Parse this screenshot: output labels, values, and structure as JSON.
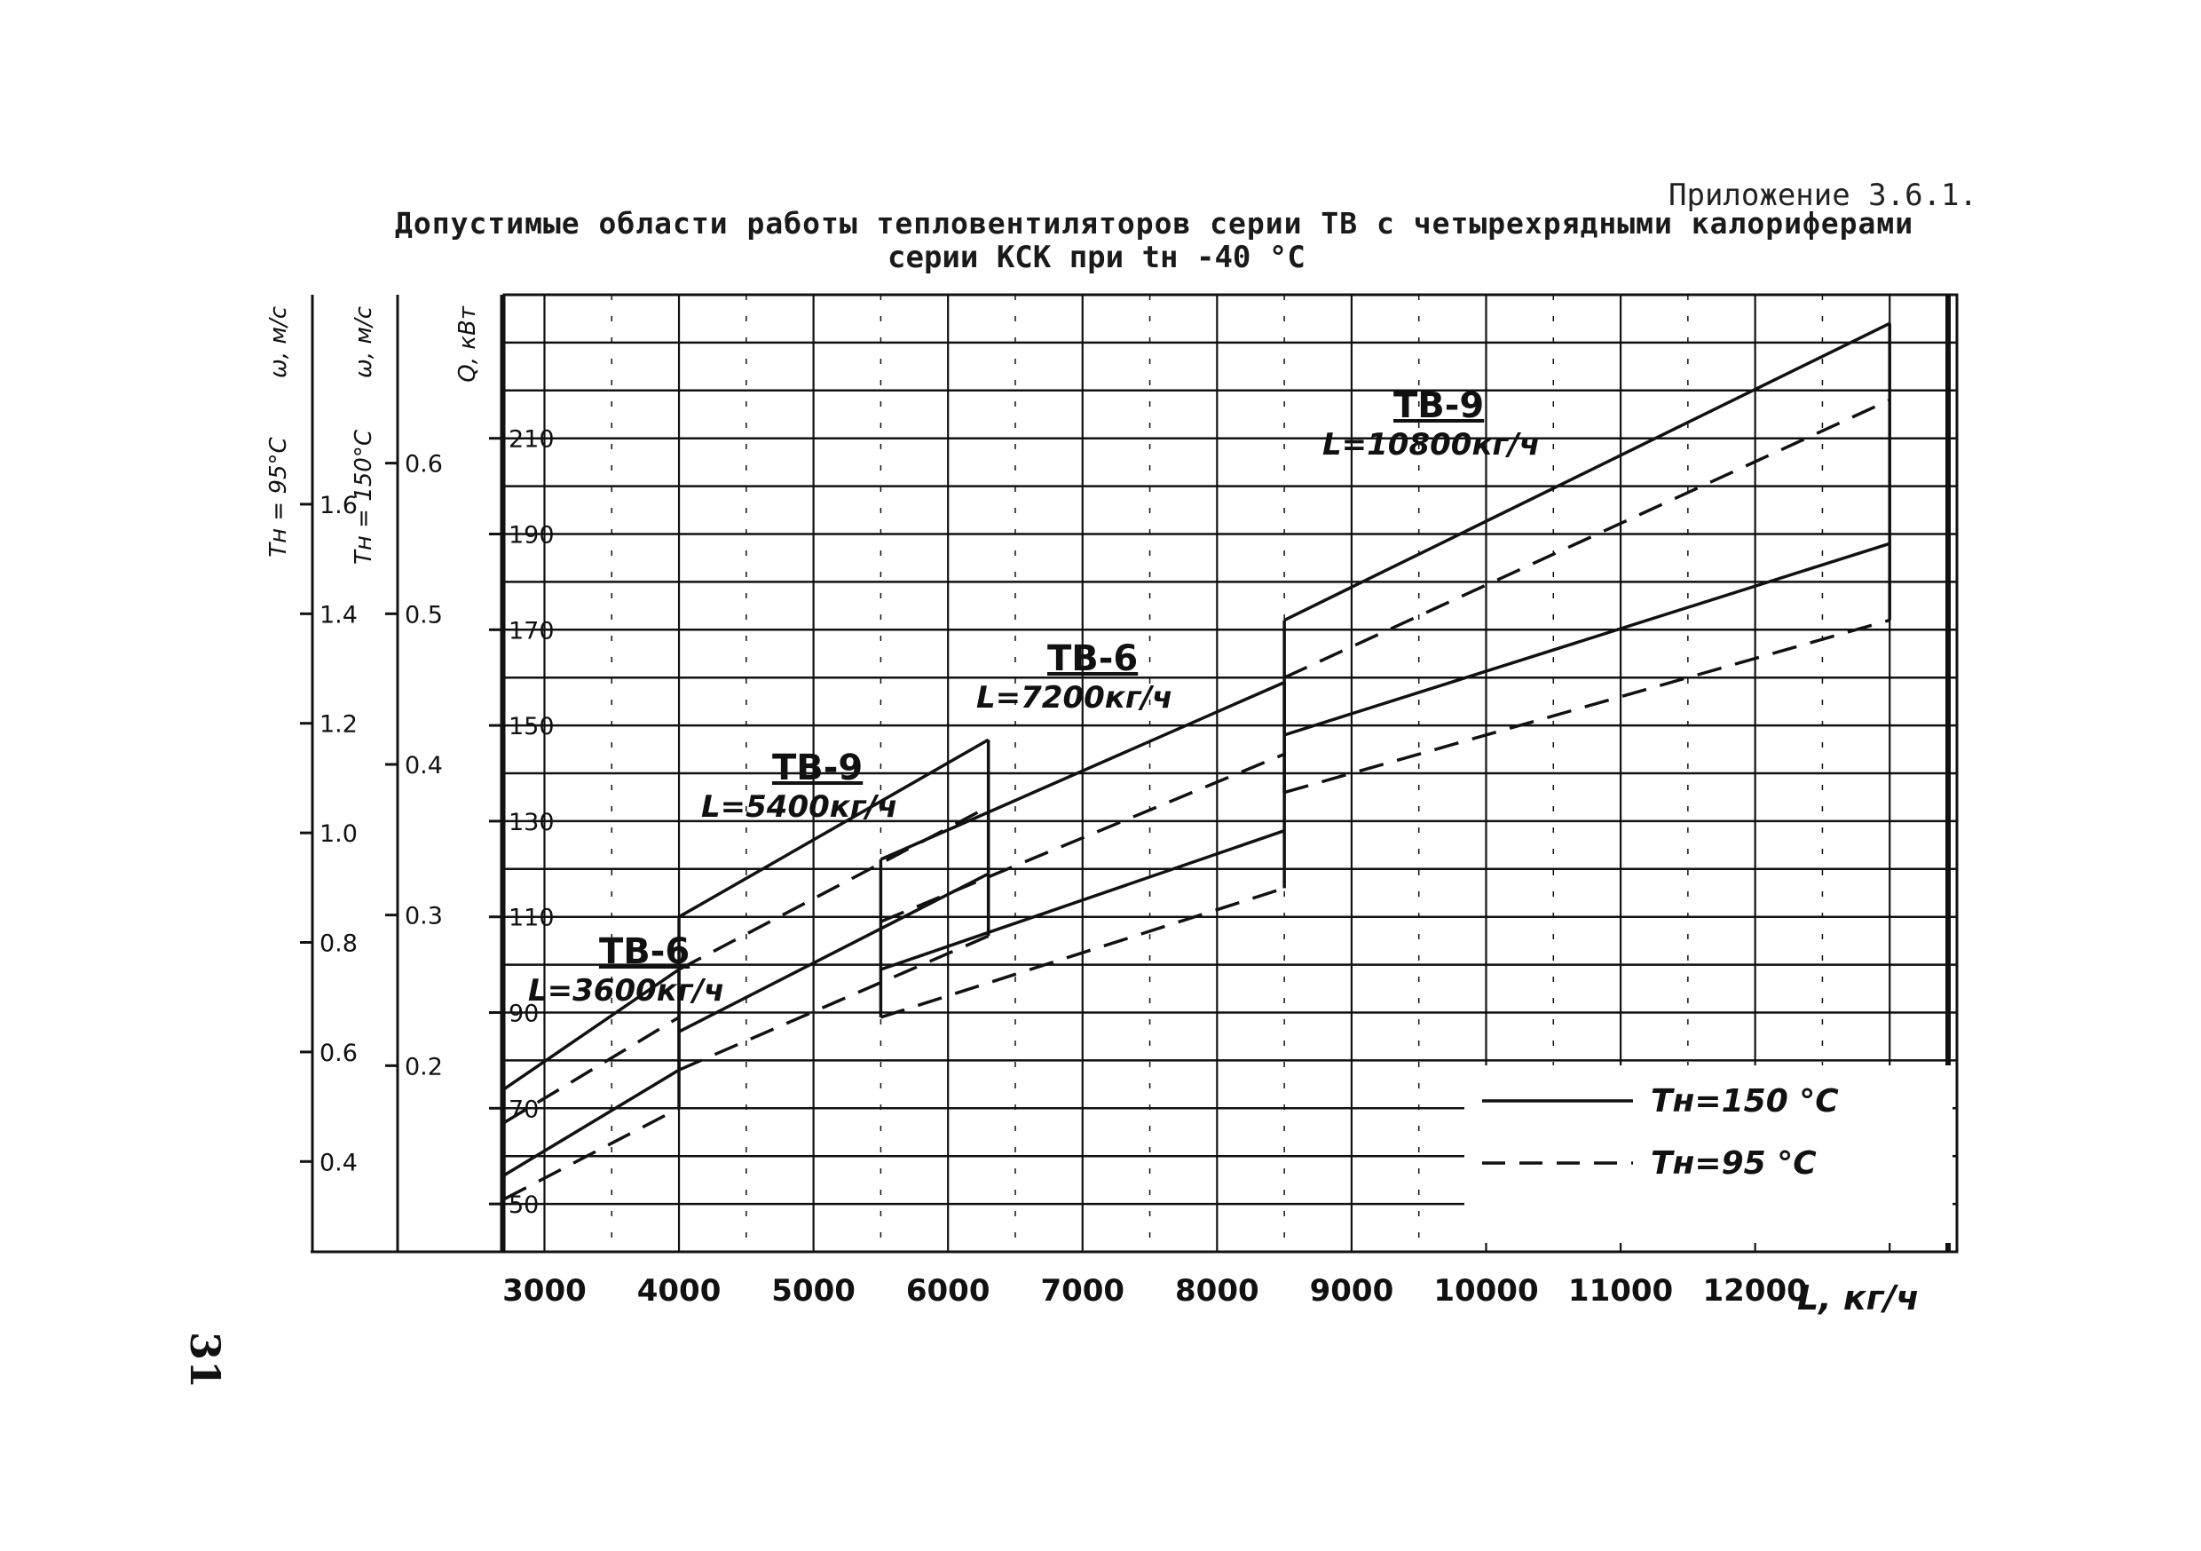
{
  "appendix": "Приложение 3.6.1.",
  "title_line1": "Допустимые области работы тепловентиляторов серии ТВ с четырехрядными калориферами",
  "title_line2": "серии КСК при  tн   -40 °С",
  "page_number": "31",
  "chart_data": {
    "type": "line",
    "title": "Допустимые области работы тепловентиляторов серии ТВ с четырехрядными калориферами серии КСК при tн -40 °С",
    "xlabel": "L, кг/ч",
    "xlim": [
      2700,
      13500
    ],
    "x_ticks": [
      "3000",
      "4000",
      "5000",
      "6000",
      "7000",
      "8000",
      "9000",
      "10000",
      "11000",
      "12000"
    ],
    "y_axes": [
      {
        "label": "ω, м/с",
        "sublabel": "Tн = 95°С",
        "ylim": [
          0.3,
          1.95
        ],
        "ticks": [
          {
            "v": 0.4,
            "t": "0.4"
          },
          {
            "v": 0.6,
            "t": "0.6"
          },
          {
            "v": 0.8,
            "t": "0.8"
          },
          {
            "v": 1.0,
            "t": "1.0"
          },
          {
            "v": 1.2,
            "t": "1.2"
          },
          {
            "v": 1.4,
            "t": "1.4"
          },
          {
            "v": 1.6,
            "t": "1.6"
          }
        ]
      },
      {
        "label": "ω, м/с",
        "sublabel": "Tн = 150°С",
        "ylim": [
          0.1,
          0.7
        ],
        "ticks": [
          {
            "v": 0.2,
            "t": "0.2"
          },
          {
            "v": 0.3,
            "t": "0.3"
          },
          {
            "v": 0.4,
            "t": "0.4"
          },
          {
            "v": 0.5,
            "t": "0.5"
          },
          {
            "v": 0.6,
            "t": "0.6"
          }
        ]
      },
      {
        "label": "Q, кВт",
        "ylim": [
          40,
          240
        ],
        "ticks": [
          {
            "v": 50,
            "t": "50"
          },
          {
            "v": 70,
            "t": "70"
          },
          {
            "v": 90,
            "t": "90"
          },
          {
            "v": 110,
            "t": "110"
          },
          {
            "v": 130,
            "t": "130"
          },
          {
            "v": 150,
            "t": "150"
          },
          {
            "v": 170,
            "t": "170"
          },
          {
            "v": 190,
            "t": "190"
          },
          {
            "v": 210,
            "t": "210"
          }
        ]
      }
    ],
    "annotations": [
      {
        "series": "ТВ-6",
        "text": "L=3600кг/ч"
      },
      {
        "series": "ТВ-9",
        "text": "L=5400кг/ч"
      },
      {
        "series": "ТВ-6",
        "text": "L=7200кг/ч"
      },
      {
        "series": "ТВ-9",
        "text": "L=10800кг/ч"
      }
    ],
    "legend": [
      {
        "label": "Tн=150 °С",
        "style": "solid"
      },
      {
        "label": "Tн=95 °С",
        "style": "dashed"
      }
    ],
    "legend_position": "bottom-right",
    "regions": [
      {
        "name": "ТВ-6",
        "L": 3600,
        "x": [
          2700,
          4000
        ],
        "solid_upper": [
          74,
          99
        ],
        "solid_lower": [
          56,
          78
        ],
        "dashed_upper": [
          67,
          89
        ],
        "dashed_lower": [
          51,
          70
        ]
      },
      {
        "name": "ТВ-9",
        "L": 5400,
        "x": [
          4000,
          6300
        ],
        "solid_upper": [
          110,
          147
        ],
        "solid_lower": [
          86,
          119
        ],
        "dashed_upper": [
          99,
          133
        ],
        "dashed_lower": [
          78,
          106
        ]
      },
      {
        "name": "ТВ-6",
        "L": 7200,
        "x": [
          5500,
          8500
        ],
        "solid_upper": [
          122,
          159
        ],
        "solid_lower": [
          99,
          128
        ],
        "dashed_upper": [
          109,
          144
        ],
        "dashed_lower": [
          89,
          116
        ]
      },
      {
        "name": "ТВ-9",
        "L": 10800,
        "x": [
          8500,
          13000
        ],
        "solid_upper": [
          172,
          234
        ],
        "solid_lower": [
          148,
          188
        ],
        "dashed_upper": [
          160,
          218
        ],
        "dashed_lower": [
          136,
          172
        ]
      }
    ],
    "grid": true
  },
  "colors": {
    "ink": "#111111",
    "paper": "#ffffff"
  }
}
